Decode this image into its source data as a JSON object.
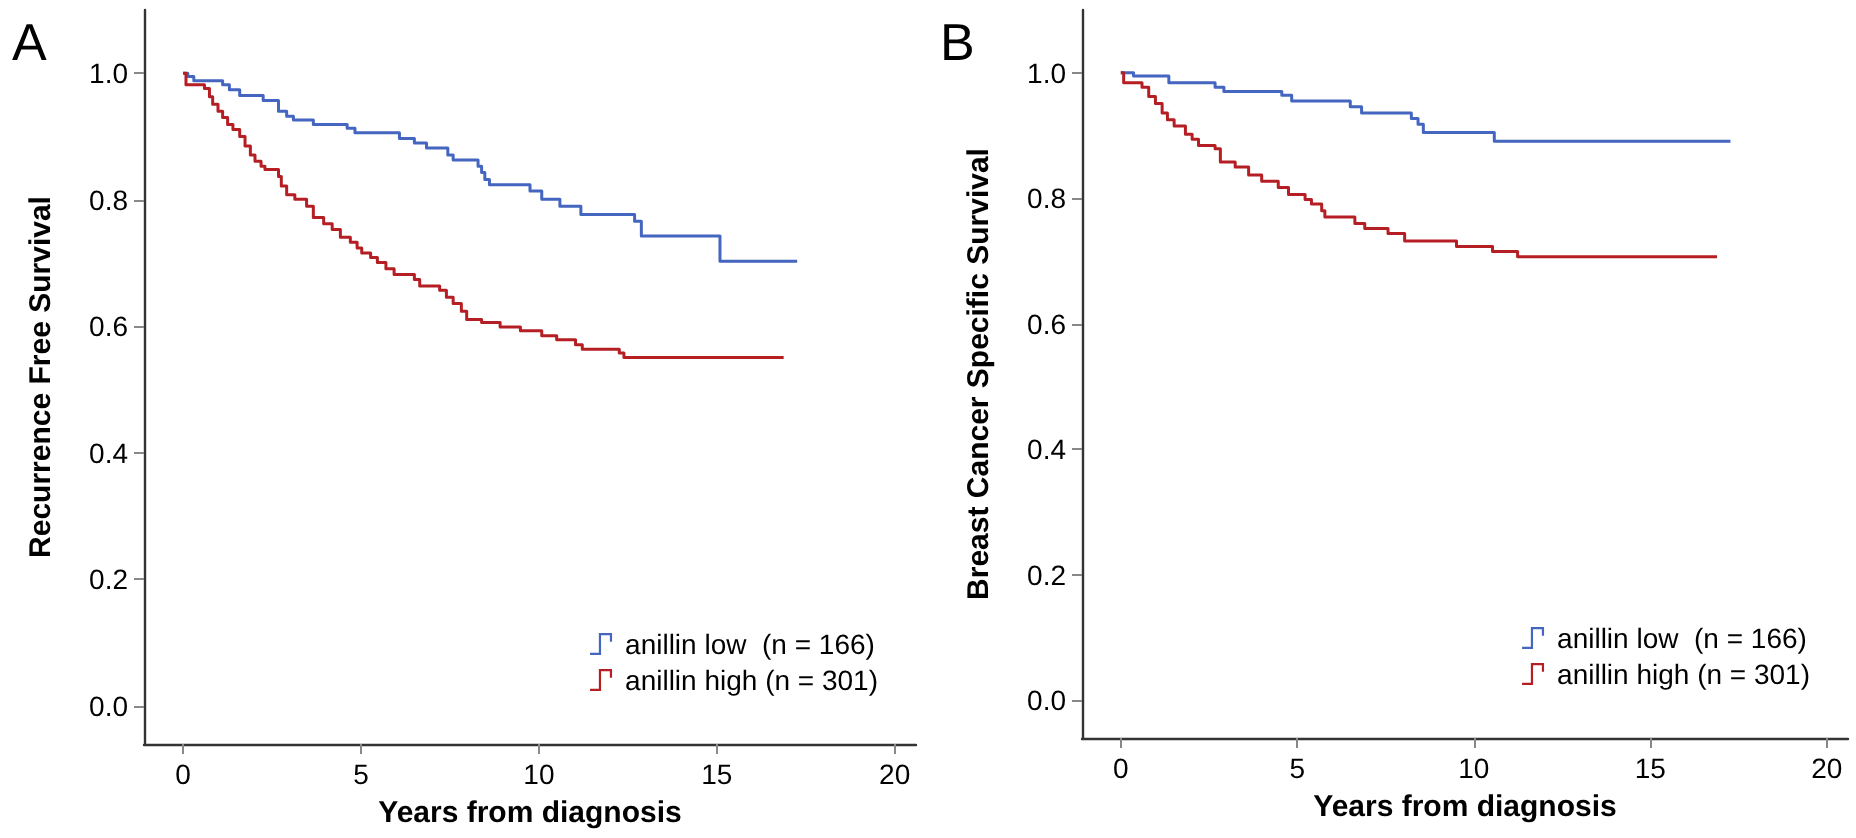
{
  "chart_data": [
    {
      "type": "step",
      "annotations": [
        "A"
      ],
      "xlabel": "Years from diagnosis",
      "ylabel": "Recurrence Free Survival",
      "xlim": [
        -1.1,
        20.6
      ],
      "ylim": [
        -0.06,
        1.1
      ],
      "xticks": [
        0,
        5,
        10,
        15,
        20
      ],
      "yticks": [
        {
          "value": 0,
          "label": "0.0"
        },
        {
          "value": 0.2,
          "label": "0.2"
        },
        {
          "value": 0.4,
          "label": "0.4"
        },
        {
          "value": 0.6,
          "label": "0.6"
        },
        {
          "value": 0.8,
          "label": "0.8"
        },
        {
          "value": 1,
          "label": "1.0"
        }
      ],
      "grid": false,
      "legend": "bottom right",
      "series": [
        {
          "name": "anillin low  (n = 166)",
          "color": "#4466c0",
          "x": [
            0,
            0.13,
            0.3,
            1.11,
            1.3,
            1.59,
            2.25,
            2.68,
            2.91,
            3.1,
            3.66,
            4.61,
            4.83,
            6.08,
            6.5,
            6.84,
            7.44,
            7.59,
            8.29,
            8.39,
            8.48,
            8.61,
            9.75,
            10.08,
            10.59,
            11.18,
            12.69,
            12.88,
            15.09,
            17.26
          ],
          "values": [
            1,
            0.995,
            0.988,
            0.982,
            0.974,
            0.965,
            0.957,
            0.94,
            0.932,
            0.926,
            0.919,
            0.913,
            0.906,
            0.897,
            0.89,
            0.882,
            0.871,
            0.863,
            0.853,
            0.843,
            0.832,
            0.824,
            0.814,
            0.801,
            0.79,
            0.777,
            0.766,
            0.743,
            0.703,
            0.703
          ]
        },
        {
          "name": "anillin high (n = 301)",
          "color": "#b51f24",
          "x": [
            0,
            0.08,
            0.6,
            0.74,
            0.83,
            0.98,
            1.11,
            1.25,
            1.4,
            1.59,
            1.74,
            1.89,
            2.02,
            2.19,
            2.3,
            2.68,
            2.76,
            2.91,
            3.14,
            3.47,
            3.66,
            3.95,
            4.19,
            4.42,
            4.7,
            4.89,
            5.02,
            5.27,
            5.46,
            5.7,
            5.93,
            6.5,
            6.65,
            7.21,
            7.4,
            7.59,
            7.82,
            7.97,
            8.39,
            8.91,
            9.48,
            10.08,
            10.5,
            11.03,
            11.22,
            12.26,
            12.39,
            16.88
          ],
          "values": [
            1,
            0.982,
            0.976,
            0.963,
            0.951,
            0.94,
            0.93,
            0.919,
            0.911,
            0.9,
            0.885,
            0.871,
            0.861,
            0.853,
            0.848,
            0.837,
            0.822,
            0.808,
            0.801,
            0.79,
            0.772,
            0.762,
            0.753,
            0.741,
            0.733,
            0.724,
            0.716,
            0.709,
            0.701,
            0.691,
            0.682,
            0.674,
            0.664,
            0.657,
            0.646,
            0.636,
            0.624,
            0.611,
            0.606,
            0.599,
            0.593,
            0.585,
            0.579,
            0.571,
            0.564,
            0.558,
            0.551,
            0.551
          ]
        }
      ]
    },
    {
      "type": "step",
      "annotations": [
        "B"
      ],
      "xlabel": "Years from diagnosis",
      "ylabel": "Breast Cancer Specific Survival",
      "xlim": [
        -1.1,
        20.6
      ],
      "ylim": [
        -0.06,
        1.1
      ],
      "xticks": [
        0,
        5,
        10,
        15,
        20
      ],
      "yticks": [
        {
          "value": 0,
          "label": "0.0"
        },
        {
          "value": 0.2,
          "label": "0.2"
        },
        {
          "value": 0.4,
          "label": "0.4"
        },
        {
          "value": 0.6,
          "label": "0.6"
        },
        {
          "value": 0.8,
          "label": "0.8"
        },
        {
          "value": 1,
          "label": "1.0"
        }
      ],
      "grid": false,
      "legend": "bottom right",
      "series": [
        {
          "name": "anillin low  (n = 166)",
          "color": "#4466c0",
          "x": [
            0,
            0.36,
            1.36,
            2.67,
            2.92,
            4.56,
            4.84,
            6.5,
            6.82,
            8.23,
            8.42,
            8.57,
            10.58,
            17.27
          ],
          "values": [
            1,
            0.995,
            0.984,
            0.977,
            0.97,
            0.964,
            0.955,
            0.946,
            0.936,
            0.927,
            0.918,
            0.905,
            0.891,
            0.891
          ]
        },
        {
          "name": "anillin high (n = 301)",
          "color": "#b51f24",
          "x": [
            0,
            0.08,
            0.6,
            0.79,
            0.98,
            1.17,
            1.32,
            1.51,
            1.83,
            2.02,
            2.2,
            2.67,
            2.82,
            3.24,
            3.62,
            3.99,
            4.46,
            4.75,
            5.22,
            5.4,
            5.69,
            5.78,
            6.63,
            6.91,
            7.57,
            8.04,
            9.51,
            10.53,
            11.24,
            16.89
          ],
          "values": [
            1,
            0.984,
            0.977,
            0.962,
            0.951,
            0.936,
            0.925,
            0.915,
            0.902,
            0.894,
            0.884,
            0.879,
            0.858,
            0.85,
            0.837,
            0.827,
            0.817,
            0.806,
            0.798,
            0.791,
            0.78,
            0.77,
            0.76,
            0.752,
            0.744,
            0.732,
            0.723,
            0.715,
            0.707,
            0.707
          ]
        }
      ]
    }
  ]
}
